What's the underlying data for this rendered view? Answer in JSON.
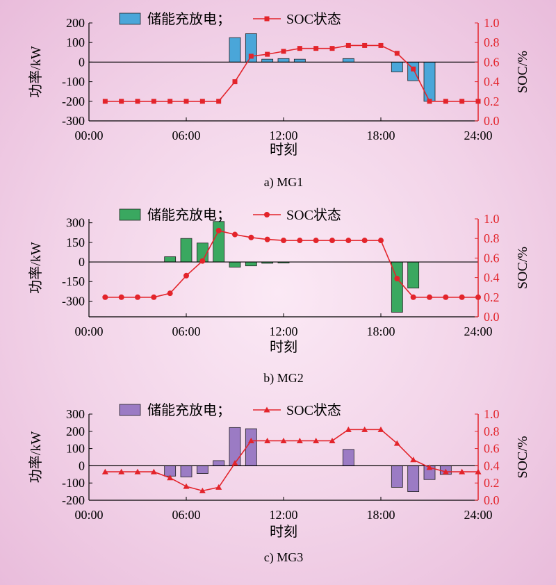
{
  "chart_data": [
    {
      "type": "bar",
      "caption": "a) MG1",
      "xlabel": "时刻",
      "ylabel": "功率/kW",
      "y2label": "SOC/%",
      "xticks": [
        "00:00",
        "06:00",
        "12:00",
        "18:00",
        "24:00"
      ],
      "xlim": [
        0,
        24
      ],
      "ylim": [
        -300,
        200
      ],
      "yticks": [
        200,
        100,
        0,
        -100,
        -200,
        -300
      ],
      "y2lim": [
        0,
        1.0
      ],
      "y2ticks": [
        "1.0",
        "0.8",
        "0.6",
        "0.4",
        "0.2",
        "0.0"
      ],
      "legend": {
        "bar": "储能充放电；",
        "line": "SOC状态"
      },
      "colors": {
        "bar": "#4aa6d9",
        "line": "#e3242b"
      },
      "marker": "square",
      "bars": [
        {
          "x": 9,
          "value": 125
        },
        {
          "x": 10,
          "value": 145
        },
        {
          "x": 11,
          "value": 15
        },
        {
          "x": 12,
          "value": 18
        },
        {
          "x": 13,
          "value": 15
        },
        {
          "x": 16,
          "value": 18
        },
        {
          "x": 19,
          "value": -50
        },
        {
          "x": 20,
          "value": -95
        },
        {
          "x": 21,
          "value": -200
        }
      ],
      "soc": [
        {
          "x": 1,
          "y": 0.2
        },
        {
          "x": 2,
          "y": 0.2
        },
        {
          "x": 3,
          "y": 0.2
        },
        {
          "x": 4,
          "y": 0.2
        },
        {
          "x": 5,
          "y": 0.2
        },
        {
          "x": 6,
          "y": 0.2
        },
        {
          "x": 7,
          "y": 0.2
        },
        {
          "x": 8,
          "y": 0.2
        },
        {
          "x": 9,
          "y": 0.4
        },
        {
          "x": 10,
          "y": 0.66
        },
        {
          "x": 11,
          "y": 0.68
        },
        {
          "x": 12,
          "y": 0.71
        },
        {
          "x": 13,
          "y": 0.74
        },
        {
          "x": 14,
          "y": 0.74
        },
        {
          "x": 15,
          "y": 0.74
        },
        {
          "x": 16,
          "y": 0.77
        },
        {
          "x": 17,
          "y": 0.77
        },
        {
          "x": 18,
          "y": 0.77
        },
        {
          "x": 19,
          "y": 0.69
        },
        {
          "x": 20,
          "y": 0.53
        },
        {
          "x": 21,
          "y": 0.2
        },
        {
          "x": 22,
          "y": 0.2
        },
        {
          "x": 23,
          "y": 0.2
        },
        {
          "x": 24,
          "y": 0.2
        }
      ]
    },
    {
      "type": "bar",
      "caption": "b) MG2",
      "xlabel": "时刻",
      "ylabel": "功率/kW",
      "y2label": "SOC/%",
      "xticks": [
        "00:00",
        "06:00",
        "12:00",
        "18:00",
        "24:00"
      ],
      "xlim": [
        0,
        24
      ],
      "ylim": [
        -420,
        330
      ],
      "yticks": [
        300,
        150,
        0,
        -150,
        -300
      ],
      "y2lim": [
        0,
        1.0
      ],
      "y2ticks": [
        "1.0",
        "0.8",
        "0.6",
        "0.4",
        "0.2",
        "0.0"
      ],
      "legend": {
        "bar": "储能充放电；",
        "line": "SOC状态"
      },
      "colors": {
        "bar": "#3aa860",
        "line": "#e3242b"
      },
      "marker": "circle",
      "bars": [
        {
          "x": 5,
          "value": 40
        },
        {
          "x": 6,
          "value": 180
        },
        {
          "x": 7,
          "value": 145
        },
        {
          "x": 8,
          "value": 310
        },
        {
          "x": 9,
          "value": -40
        },
        {
          "x": 10,
          "value": -30
        },
        {
          "x": 11,
          "value": -10
        },
        {
          "x": 12,
          "value": -8
        },
        {
          "x": 19,
          "value": -385
        },
        {
          "x": 20,
          "value": -200
        }
      ],
      "soc": [
        {
          "x": 1,
          "y": 0.2
        },
        {
          "x": 2,
          "y": 0.2
        },
        {
          "x": 3,
          "y": 0.2
        },
        {
          "x": 4,
          "y": 0.2
        },
        {
          "x": 5,
          "y": 0.24
        },
        {
          "x": 6,
          "y": 0.42
        },
        {
          "x": 7,
          "y": 0.57
        },
        {
          "x": 8,
          "y": 0.88
        },
        {
          "x": 9,
          "y": 0.84
        },
        {
          "x": 10,
          "y": 0.81
        },
        {
          "x": 11,
          "y": 0.79
        },
        {
          "x": 12,
          "y": 0.78
        },
        {
          "x": 13,
          "y": 0.78
        },
        {
          "x": 14,
          "y": 0.78
        },
        {
          "x": 15,
          "y": 0.78
        },
        {
          "x": 16,
          "y": 0.78
        },
        {
          "x": 17,
          "y": 0.78
        },
        {
          "x": 18,
          "y": 0.78
        },
        {
          "x": 19,
          "y": 0.39
        },
        {
          "x": 20,
          "y": 0.2
        },
        {
          "x": 21,
          "y": 0.2
        },
        {
          "x": 22,
          "y": 0.2
        },
        {
          "x": 23,
          "y": 0.2
        },
        {
          "x": 24,
          "y": 0.2
        }
      ]
    },
    {
      "type": "bar",
      "caption": "c) MG3",
      "xlabel": "时刻",
      "ylabel": "功率/kW",
      "y2label": "SOC/%",
      "xticks": [
        "00:00",
        "06:00",
        "12:00",
        "18:00",
        "24:00"
      ],
      "xlim": [
        0,
        24
      ],
      "ylim": [
        -200,
        300
      ],
      "yticks": [
        300,
        200,
        100,
        0,
        -100,
        -200
      ],
      "y2lim": [
        0,
        1.0
      ],
      "y2ticks": [
        "1.0",
        "0.8",
        "0.6",
        "0.4",
        "0.2",
        "0.0"
      ],
      "legend": {
        "bar": "储能充放电；",
        "line": "SOC状态"
      },
      "colors": {
        "bar": "#9b7bc4",
        "line": "#e3242b"
      },
      "marker": "triangle",
      "bars": [
        {
          "x": 5,
          "value": -60
        },
        {
          "x": 6,
          "value": -65
        },
        {
          "x": 7,
          "value": -45
        },
        {
          "x": 8,
          "value": 30
        },
        {
          "x": 9,
          "value": 222
        },
        {
          "x": 10,
          "value": 215
        },
        {
          "x": 16,
          "value": 95
        },
        {
          "x": 19,
          "value": -125
        },
        {
          "x": 20,
          "value": -150
        },
        {
          "x": 21,
          "value": -80
        },
        {
          "x": 22,
          "value": -50
        }
      ],
      "soc": [
        {
          "x": 1,
          "y": 0.33
        },
        {
          "x": 2,
          "y": 0.33
        },
        {
          "x": 3,
          "y": 0.33
        },
        {
          "x": 4,
          "y": 0.33
        },
        {
          "x": 5,
          "y": 0.26
        },
        {
          "x": 6,
          "y": 0.16
        },
        {
          "x": 7,
          "y": 0.11
        },
        {
          "x": 8,
          "y": 0.15
        },
        {
          "x": 9,
          "y": 0.43
        },
        {
          "x": 10,
          "y": 0.69
        },
        {
          "x": 11,
          "y": 0.69
        },
        {
          "x": 12,
          "y": 0.69
        },
        {
          "x": 13,
          "y": 0.69
        },
        {
          "x": 14,
          "y": 0.69
        },
        {
          "x": 15,
          "y": 0.69
        },
        {
          "x": 16,
          "y": 0.82
        },
        {
          "x": 17,
          "y": 0.82
        },
        {
          "x": 18,
          "y": 0.82
        },
        {
          "x": 19,
          "y": 0.66
        },
        {
          "x": 20,
          "y": 0.47
        },
        {
          "x": 21,
          "y": 0.38
        },
        {
          "x": 22,
          "y": 0.33
        },
        {
          "x": 23,
          "y": 0.33
        },
        {
          "x": 24,
          "y": 0.33
        }
      ]
    }
  ]
}
